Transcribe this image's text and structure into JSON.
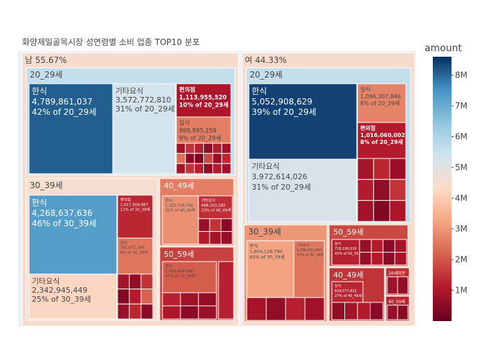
{
  "chart_data": {
    "type": "treemap",
    "title": "화양제일골목시장 성연령별 소비 업종 TOP10 분포",
    "colorbar": {
      "title": "amount",
      "min": 0,
      "max": 8600000,
      "ticks": [
        {
          "value": 1000000,
          "label": "1M"
        },
        {
          "value": 2000000,
          "label": "2M"
        },
        {
          "value": 3000000,
          "label": "3M"
        },
        {
          "value": 4000000,
          "label": "4M"
        },
        {
          "value": 5000000,
          "label": "5M"
        },
        {
          "value": 6000000,
          "label": "6M"
        },
        {
          "value": 7000000,
          "label": "7M"
        },
        {
          "value": 8000000,
          "label": "8M"
        }
      ],
      "colorscale": [
        {
          "stop": 0.0,
          "color": "#67001f"
        },
        {
          "stop": 0.125,
          "color": "#b2182b"
        },
        {
          "stop": 0.25,
          "color": "#d6604d"
        },
        {
          "stop": 0.375,
          "color": "#f4a582"
        },
        {
          "stop": 0.5,
          "color": "#fddbc7"
        },
        {
          "stop": 0.625,
          "color": "#d1e5f0"
        },
        {
          "stop": 0.75,
          "color": "#92c5de"
        },
        {
          "stop": 0.875,
          "color": "#4393c3"
        },
        {
          "stop": 1.0,
          "color": "#053061"
        }
      ]
    },
    "genders": [
      {
        "label": "남",
        "share": "55.67%",
        "amount": 4450000,
        "groups": [
          {
            "label": "20_29세",
            "amount": 5600000,
            "items": [
              {
                "name": "한식",
                "value": 4789861037,
                "value_text": "4,789,861,037",
                "pct": "42% of 20_29세",
                "amount": 8100000,
                "size": "large"
              },
              {
                "name": "기타요식",
                "value": 3572772810,
                "value_text": "3,572,772,810",
                "pct": "31% of 20_29세",
                "amount": 5300000,
                "size": "medium"
              },
              {
                "name": "편의점",
                "value": 1113955520,
                "value_text": "1,113,955,520",
                "pct": "10% of 20_29세",
                "amount": 1000000,
                "size": "small",
                "bold": true
              },
              {
                "name": "일식",
                "value": 998895259,
                "value_text": "998,895,259",
                "pct": "9% of 20_29세",
                "amount": 2600000,
                "size": "small"
              }
            ],
            "minor_amounts": [
              900000,
              1500000,
              1200000,
              600000,
              1100000,
              800000,
              2400000,
              500000,
              300000,
              1800000,
              700000,
              1300000
            ]
          },
          {
            "label": "30_39세",
            "amount": 4500000,
            "items": [
              {
                "name": "한식",
                "value": 4268637636,
                "value_text": "4,268,637,636",
                "pct": "46% of 30_39세",
                "amount": 7300000,
                "size": "large"
              },
              {
                "name": "편의점",
                "value": 1017508987,
                "value_text": "1,017,508,987",
                "pct": "11% of 30_39세",
                "amount": 1300000,
                "size": "tiny"
              },
              {
                "name": "일식",
                "value": 781871345,
                "value_text": "781,871,345",
                "pct": "8% of 30_39세",
                "amount": 2500000,
                "size": "tiny"
              },
              {
                "name": "기타요식",
                "value": 2342945449,
                "value_text": "2,342,945,449",
                "pct": "25% of 30_39세",
                "amount": 4200000,
                "size": "medium"
              }
            ],
            "minor_amounts": [
              900000,
              600000,
              1500000,
              400000,
              1100000,
              2200000,
              700000,
              1300000,
              500000
            ]
          },
          {
            "label": "40_49세",
            "amount": 2600000,
            "items": [
              {
                "name": "한식",
                "value": 1332718746,
                "value_text": "1,332,718,746",
                "pct": "32% of 40_49세",
                "amount": 2900000,
                "size": "tiny"
              },
              {
                "name": "기타요식",
                "value": 688263180,
                "value_text": "688,263,180",
                "pct": "23% of 40_49세",
                "amount": 1400000,
                "size": "tiny"
              }
            ],
            "minor_amounts": [
              700000,
              1500000,
              500000,
              1100000,
              900000
            ]
          },
          {
            "label": "50_59세",
            "amount": 1700000,
            "items": [
              {
                "name": "한식",
                "value": 1020650766,
                "value_text": "1,020,650,766",
                "pct": "47% of 50_59세",
                "amount": 2100000,
                "size": "tiny"
              }
            ],
            "minor_amounts": [
              1200000,
              800000,
              600000,
              1000000,
              500000,
              700000
            ]
          }
        ]
      },
      {
        "label": "여",
        "share": "44.33%",
        "amount": 4450000,
        "groups": [
          {
            "label": "20_29세",
            "amount": 5600000,
            "items": [
              {
                "name": "한식",
                "value": 5052908629,
                "value_text": "5,052,908,629",
                "pct": "39% of 20_29세",
                "amount": 8400000,
                "size": "large"
              },
              {
                "name": "일식",
                "value": 1096307846,
                "value_text": "1,096,307,846",
                "pct": "8% of 20_29세",
                "amount": 2700000,
                "size": "small"
              },
              {
                "name": "편의점",
                "value": 1016060002,
                "value_text": "1,016,060,002",
                "pct": "8% of 20_29세",
                "amount": 1100000,
                "size": "small",
                "bold": true
              },
              {
                "name": "기타요식",
                "value": 3972614026,
                "value_text": "3,972,614,026",
                "pct": "31% of 20_29세",
                "amount": 5200000,
                "size": "medium"
              }
            ],
            "minor_amounts": [
              900000,
              1300000,
              700000,
              1100000,
              600000,
              1500000,
              800000,
              400000,
              1000000
            ]
          },
          {
            "label": "30_39세",
            "amount": 3000000,
            "items": [
              {
                "name": "한식",
                "value": 1804128794,
                "value_text": "1,804,128,794",
                "pct": "45% of 30_39세",
                "amount": 3200000,
                "size": "small"
              },
              {
                "name": "기타요식",
                "value": 1286231000,
                "value_text": "1,286,231,000",
                "pct": "32% of 30_39세",
                "amount": 2500000,
                "size": "tiny"
              }
            ],
            "minor_amounts": [
              900000,
              600000,
              1200000,
              800000
            ]
          },
          {
            "label": "50_59세",
            "amount": 1800000,
            "items": [
              {
                "name": "한식",
                "value": 718100016,
                "value_text": "718,100,016",
                "pct": "43% of 50_59세",
                "amount": 1200000,
                "size": "tiny"
              }
            ],
            "minor_amounts": [
              700000,
              1100000,
              500000,
              900000
            ]
          },
          {
            "label": "40_49세",
            "amount": 1500000,
            "items": [
              {
                "name": "한식",
                "value": 628077622,
                "value_text": "628,077,622",
                "pct": "27% of 40_49세",
                "amount": 1300000,
                "size": "tiny"
              }
            ],
            "minor_amounts": [
              600000,
              900000,
              1100000,
              500000
            ]
          },
          {
            "label": "20세미만",
            "amount": 1400000,
            "items": [],
            "minor_amounts": [
              800000,
              600000
            ]
          },
          {
            "label": "60_69세",
            "amount": 1300000,
            "items": [],
            "minor_amounts": [
              700000,
              500000
            ]
          }
        ]
      }
    ]
  }
}
